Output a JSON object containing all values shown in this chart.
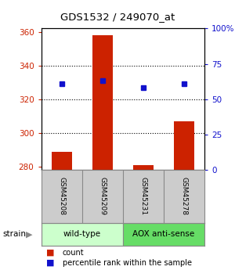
{
  "title": "GDS1532 / 249070_at",
  "samples": [
    "GSM45208",
    "GSM45209",
    "GSM45231",
    "GSM45278"
  ],
  "bar_color": "#cc2200",
  "dot_color": "#1111cc",
  "count_values": [
    289,
    358,
    281,
    307
  ],
  "percentile_values": [
    329,
    331,
    327,
    329
  ],
  "ylim_left": [
    278,
    362
  ],
  "ylim_right": [
    0,
    100
  ],
  "yticks_left": [
    280,
    300,
    320,
    340,
    360
  ],
  "yticks_right": [
    0,
    25,
    50,
    75,
    100
  ],
  "ytick_labels_right": [
    "0",
    "25",
    "50",
    "75",
    "100%"
  ],
  "grid_ticks": [
    300,
    320,
    340
  ],
  "bar_width": 0.5,
  "bg_color": "#ffffff",
  "left_tick_color": "#cc2200",
  "right_tick_color": "#1111cc",
  "sample_box_color": "#cccccc",
  "sample_box_edge": "#888888",
  "group_defs": [
    {
      "start": 0,
      "end": 2,
      "label": "wild-type",
      "color": "#ccffcc"
    },
    {
      "start": 2,
      "end": 4,
      "label": "AOX anti-sense",
      "color": "#66dd66"
    }
  ],
  "strain_label": "strain",
  "legend_items": [
    {
      "color": "#cc2200",
      "label": "count"
    },
    {
      "color": "#1111cc",
      "label": "percentile rank within the sample"
    }
  ]
}
